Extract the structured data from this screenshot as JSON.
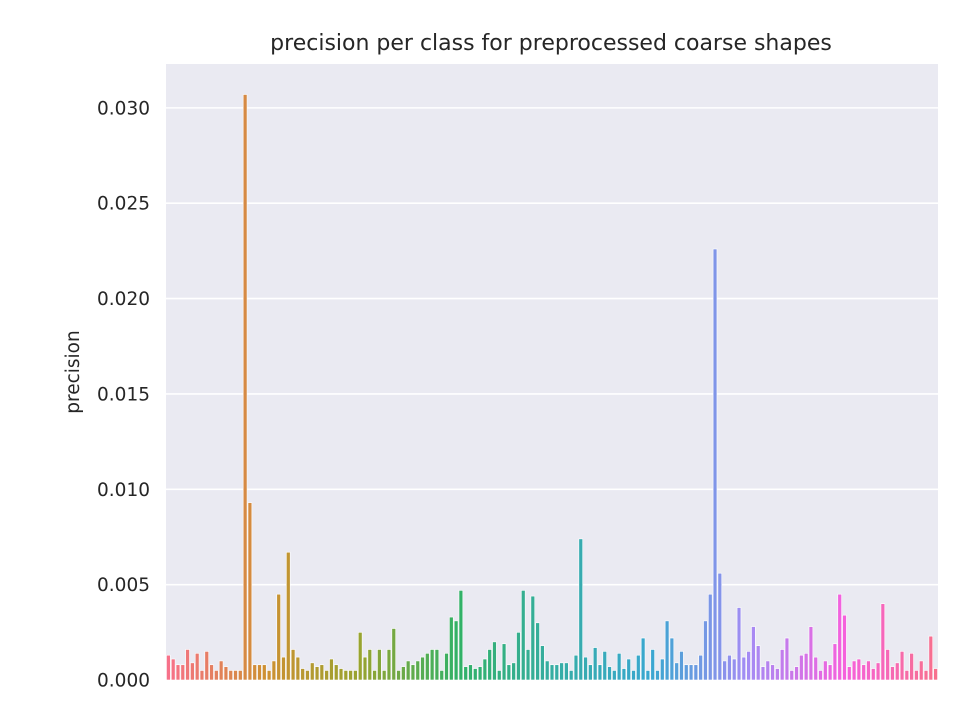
{
  "chart_data": {
    "type": "bar",
    "title": "precision per class for preprocessed coarse shapes",
    "xlabel": "",
    "ylabel": "precision",
    "ylim": [
      0,
      0.0323
    ],
    "yticks": [
      "0.000",
      "0.005",
      "0.010",
      "0.015",
      "0.020",
      "0.025",
      "0.030"
    ],
    "grid": true,
    "legend": "none",
    "palette": [
      "#f77189",
      "#ce9032",
      "#97a431",
      "#32b166",
      "#36ada4",
      "#39a7d0",
      "#a48cf4",
      "#f561dd"
    ],
    "values": [
      0.0013,
      0.0011,
      0.0008,
      0.0008,
      0.0016,
      0.0009,
      0.0014,
      0.0005,
      0.0015,
      0.0008,
      0.0005,
      0.001,
      0.0007,
      0.0005,
      0.0005,
      0.0005,
      0.0307,
      0.0093,
      0.0008,
      0.0008,
      0.0008,
      0.0005,
      0.001,
      0.0045,
      0.0012,
      0.0067,
      0.0016,
      0.0012,
      0.0006,
      0.0005,
      0.0009,
      0.0007,
      0.0008,
      0.0005,
      0.0011,
      0.0008,
      0.0006,
      0.0005,
      0.0005,
      0.0005,
      0.0025,
      0.0012,
      0.0016,
      0.0005,
      0.0016,
      0.0005,
      0.0016,
      0.0027,
      0.0005,
      0.0007,
      0.001,
      0.0008,
      0.001,
      0.0012,
      0.0014,
      0.0016,
      0.0016,
      0.0005,
      0.0014,
      0.0033,
      0.0031,
      0.0047,
      0.0007,
      0.0008,
      0.0006,
      0.0007,
      0.0011,
      0.0016,
      0.002,
      0.0005,
      0.0019,
      0.0008,
      0.0009,
      0.0025,
      0.0047,
      0.0016,
      0.0044,
      0.003,
      0.0018,
      0.001,
      0.0008,
      0.0008,
      0.0009,
      0.0009,
      0.0005,
      0.0013,
      0.0074,
      0.0012,
      0.0008,
      0.0017,
      0.0008,
      0.0015,
      0.0007,
      0.0005,
      0.0014,
      0.0006,
      0.0011,
      0.0005,
      0.0013,
      0.0022,
      0.0005,
      0.0016,
      0.0005,
      0.0011,
      0.0031,
      0.0022,
      0.0009,
      0.0015,
      0.0008,
      0.0008,
      0.0008,
      0.0013,
      0.0031,
      0.0045,
      0.0226,
      0.0056,
      0.001,
      0.0013,
      0.0011,
      0.0038,
      0.0012,
      0.0015,
      0.0028,
      0.0018,
      0.0007,
      0.001,
      0.0008,
      0.0006,
      0.0016,
      0.0022,
      0.0005,
      0.0007,
      0.0013,
      0.0014,
      0.0028,
      0.0012,
      0.0005,
      0.001,
      0.0008,
      0.0019,
      0.0045,
      0.0034,
      0.0007,
      0.001,
      0.0011,
      0.0008,
      0.001,
      0.0006,
      0.0009,
      0.004,
      0.0016,
      0.0007,
      0.0009,
      0.0015,
      0.0005,
      0.0014,
      0.0005,
      0.001,
      0.0005,
      0.0023,
      0.0006
    ]
  }
}
